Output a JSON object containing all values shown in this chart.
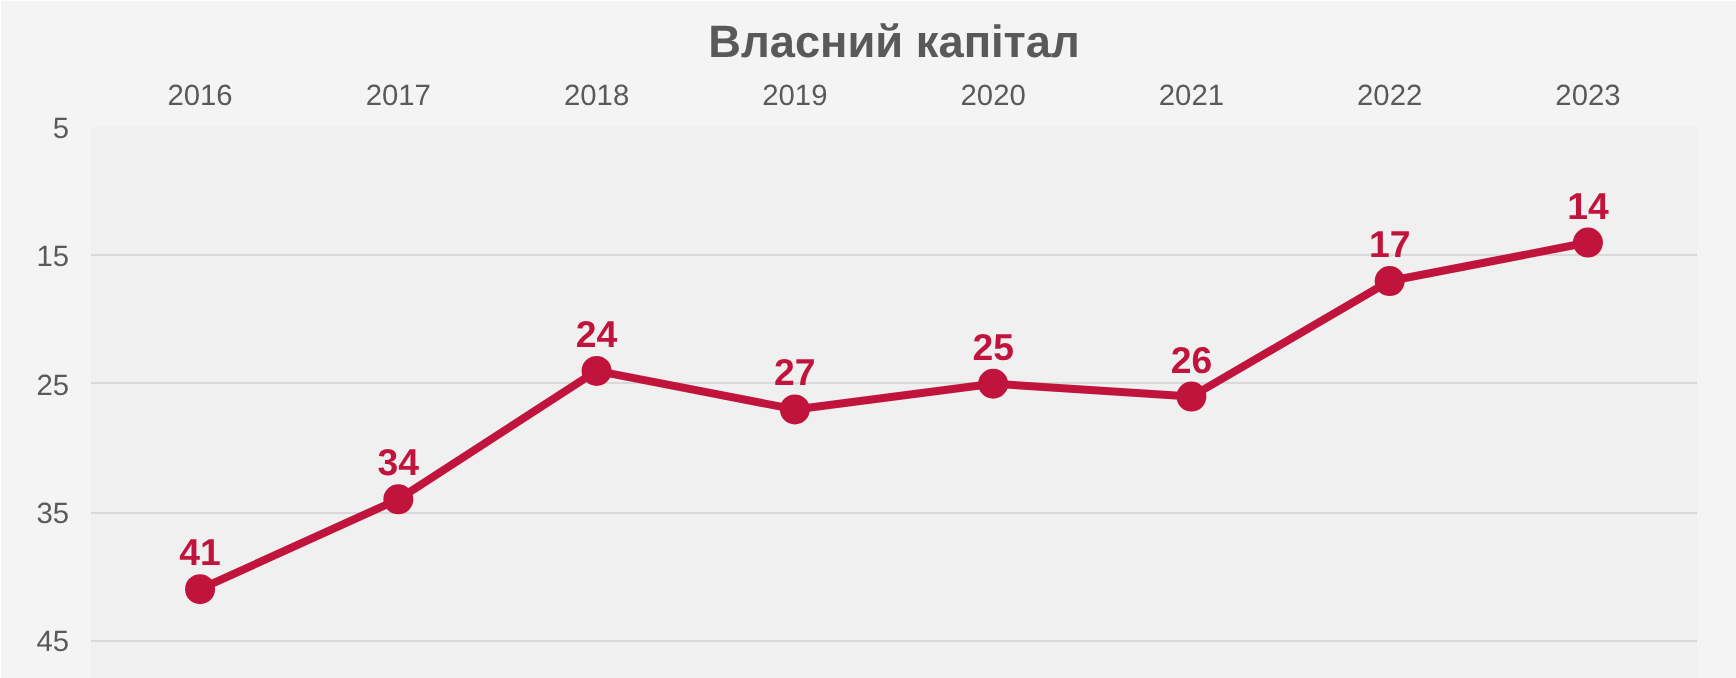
{
  "chart_data": {
    "type": "line",
    "title": "Власний капітал",
    "categories": [
      "2016",
      "2017",
      "2018",
      "2019",
      "2020",
      "2021",
      "2022",
      "2023"
    ],
    "series": [
      {
        "color": "#c0143c",
        "values": [
          41,
          34,
          24,
          27,
          25,
          26,
          17,
          14
        ]
      }
    ],
    "ylim": [
      48,
      5
    ],
    "yticks": [
      5,
      15,
      25,
      35,
      45
    ],
    "grid": "y",
    "marker": "circle",
    "line_style": "solid",
    "data_labels": true
  }
}
